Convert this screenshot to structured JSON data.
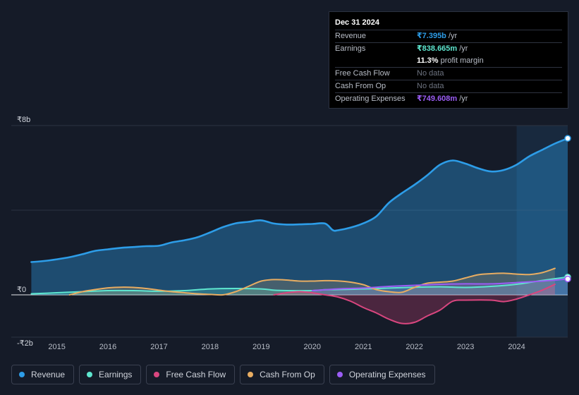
{
  "tooltip": {
    "date": "Dec 31 2024",
    "rows": [
      {
        "label": "Revenue",
        "value": "₹7.395b",
        "unit": "/yr",
        "color": "#2d9de8"
      },
      {
        "label": "Earnings",
        "value": "₹838.665m",
        "unit": "/yr",
        "color": "#5ee6cf"
      },
      {
        "label": "",
        "value": "11.3%",
        "unit": "profit margin",
        "color": "#ffffff"
      },
      {
        "label": "Free Cash Flow",
        "value": "No data",
        "unit": "",
        "color": "#6d7380"
      },
      {
        "label": "Cash From Op",
        "value": "No data",
        "unit": "",
        "color": "#6d7380"
      },
      {
        "label": "Operating Expenses",
        "value": "₹749.608m",
        "unit": "/yr",
        "color": "#9b5df5"
      }
    ]
  },
  "legend": [
    {
      "label": "Revenue",
      "color": "#2d9de8"
    },
    {
      "label": "Earnings",
      "color": "#5ee6cf"
    },
    {
      "label": "Free Cash Flow",
      "color": "#d9467f"
    },
    {
      "label": "Cash From Op",
      "color": "#e8ad62"
    },
    {
      "label": "Operating Expenses",
      "color": "#9b5df5"
    }
  ],
  "chart_data": {
    "type": "line",
    "title": "",
    "currency": "₹",
    "y_tick_labels": [
      "₹8b",
      "₹0",
      "-₹2b"
    ],
    "y_ticks": [
      8,
      0,
      -2
    ],
    "ylim": [
      -2,
      8
    ],
    "xlim": [
      2014.55,
      2025.0
    ],
    "x_tick_labels": [
      "2015",
      "2016",
      "2017",
      "2018",
      "2019",
      "2020",
      "2021",
      "2022",
      "2023",
      "2024"
    ],
    "x_ticks": [
      2015,
      2016,
      2017,
      2018,
      2019,
      2020,
      2021,
      2022,
      2023,
      2024
    ],
    "highlight_start": 2024.0,
    "series": [
      {
        "name": "Revenue",
        "color": "#2d9de8",
        "fill": true,
        "points": [
          [
            2014.5,
            1.55
          ],
          [
            2014.75,
            1.6
          ],
          [
            2015.0,
            1.68
          ],
          [
            2015.25,
            1.78
          ],
          [
            2015.5,
            1.92
          ],
          [
            2015.75,
            2.08
          ],
          [
            2016.0,
            2.15
          ],
          [
            2016.25,
            2.22
          ],
          [
            2016.5,
            2.26
          ],
          [
            2016.75,
            2.3
          ],
          [
            2017.0,
            2.32
          ],
          [
            2017.25,
            2.48
          ],
          [
            2017.5,
            2.58
          ],
          [
            2017.75,
            2.72
          ],
          [
            2018.0,
            2.95
          ],
          [
            2018.25,
            3.2
          ],
          [
            2018.5,
            3.38
          ],
          [
            2018.75,
            3.45
          ],
          [
            2019.0,
            3.52
          ],
          [
            2019.25,
            3.37
          ],
          [
            2019.5,
            3.32
          ],
          [
            2019.75,
            3.33
          ],
          [
            2020.0,
            3.35
          ],
          [
            2020.25,
            3.37
          ],
          [
            2020.4,
            3.06
          ],
          [
            2020.5,
            3.05
          ],
          [
            2020.75,
            3.18
          ],
          [
            2021.0,
            3.38
          ],
          [
            2021.25,
            3.7
          ],
          [
            2021.5,
            4.35
          ],
          [
            2021.75,
            4.8
          ],
          [
            2022.0,
            5.2
          ],
          [
            2022.25,
            5.65
          ],
          [
            2022.5,
            6.15
          ],
          [
            2022.75,
            6.35
          ],
          [
            2023.0,
            6.2
          ],
          [
            2023.25,
            5.98
          ],
          [
            2023.5,
            5.83
          ],
          [
            2023.75,
            5.9
          ],
          [
            2024.0,
            6.15
          ],
          [
            2024.25,
            6.55
          ],
          [
            2024.5,
            6.85
          ],
          [
            2024.75,
            7.15
          ],
          [
            2025.0,
            7.395
          ]
        ]
      },
      {
        "name": "Earnings",
        "color": "#5ee6cf",
        "fill": true,
        "points": [
          [
            2014.5,
            0.05
          ],
          [
            2015.0,
            0.1
          ],
          [
            2015.5,
            0.15
          ],
          [
            2016.0,
            0.2
          ],
          [
            2016.5,
            0.2
          ],
          [
            2017.0,
            0.17
          ],
          [
            2017.5,
            0.2
          ],
          [
            2018.0,
            0.28
          ],
          [
            2018.5,
            0.3
          ],
          [
            2019.0,
            0.28
          ],
          [
            2019.25,
            0.22
          ],
          [
            2019.5,
            0.2
          ],
          [
            2020.0,
            0.2
          ],
          [
            2020.25,
            0.24
          ],
          [
            2020.5,
            0.25
          ],
          [
            2021.0,
            0.28
          ],
          [
            2021.5,
            0.32
          ],
          [
            2022.0,
            0.36
          ],
          [
            2022.5,
            0.38
          ],
          [
            2023.0,
            0.35
          ],
          [
            2023.5,
            0.4
          ],
          [
            2024.0,
            0.5
          ],
          [
            2024.5,
            0.68
          ],
          [
            2025.0,
            0.838665
          ]
        ]
      },
      {
        "name": "Free Cash Flow",
        "color": "#d9467f",
        "fill": true,
        "points": [
          [
            2019.25,
            0.0
          ],
          [
            2019.5,
            0.1
          ],
          [
            2019.75,
            0.15
          ],
          [
            2020.0,
            0.1
          ],
          [
            2020.25,
            0.0
          ],
          [
            2020.5,
            -0.1
          ],
          [
            2020.75,
            -0.3
          ],
          [
            2021.0,
            -0.6
          ],
          [
            2021.25,
            -0.85
          ],
          [
            2021.5,
            -1.15
          ],
          [
            2021.75,
            -1.35
          ],
          [
            2022.0,
            -1.3
          ],
          [
            2022.25,
            -1.0
          ],
          [
            2022.5,
            -0.72
          ],
          [
            2022.75,
            -0.3
          ],
          [
            2023.0,
            -0.25
          ],
          [
            2023.5,
            -0.25
          ],
          [
            2023.75,
            -0.32
          ],
          [
            2024.0,
            -0.2
          ],
          [
            2024.25,
            0.0
          ],
          [
            2024.5,
            0.22
          ],
          [
            2024.75,
            0.5
          ]
        ]
      },
      {
        "name": "Cash From Op",
        "color": "#e8ad62",
        "fill": true,
        "points": [
          [
            2015.25,
            0.0
          ],
          [
            2015.5,
            0.15
          ],
          [
            2015.75,
            0.25
          ],
          [
            2016.0,
            0.33
          ],
          [
            2016.25,
            0.36
          ],
          [
            2016.5,
            0.35
          ],
          [
            2016.75,
            0.3
          ],
          [
            2017.0,
            0.22
          ],
          [
            2017.25,
            0.15
          ],
          [
            2017.5,
            0.1
          ],
          [
            2017.75,
            0.05
          ],
          [
            2018.0,
            0.02
          ],
          [
            2018.25,
            0.0
          ],
          [
            2018.5,
            0.15
          ],
          [
            2018.75,
            0.4
          ],
          [
            2019.0,
            0.65
          ],
          [
            2019.25,
            0.72
          ],
          [
            2019.5,
            0.7
          ],
          [
            2019.75,
            0.65
          ],
          [
            2020.0,
            0.65
          ],
          [
            2020.25,
            0.67
          ],
          [
            2020.5,
            0.66
          ],
          [
            2020.75,
            0.6
          ],
          [
            2021.0,
            0.48
          ],
          [
            2021.25,
            0.25
          ],
          [
            2021.5,
            0.15
          ],
          [
            2021.75,
            0.12
          ],
          [
            2022.0,
            0.35
          ],
          [
            2022.25,
            0.55
          ],
          [
            2022.5,
            0.6
          ],
          [
            2022.75,
            0.65
          ],
          [
            2023.0,
            0.8
          ],
          [
            2023.25,
            0.95
          ],
          [
            2023.5,
            1.0
          ],
          [
            2023.75,
            1.02
          ],
          [
            2024.0,
            0.98
          ],
          [
            2024.25,
            0.96
          ],
          [
            2024.5,
            1.05
          ],
          [
            2024.75,
            1.25
          ]
        ]
      },
      {
        "name": "Operating Expenses",
        "color": "#9b5df5",
        "fill": true,
        "points": [
          [
            2020.0,
            0.2
          ],
          [
            2020.5,
            0.28
          ],
          [
            2021.0,
            0.32
          ],
          [
            2021.5,
            0.4
          ],
          [
            2022.0,
            0.45
          ],
          [
            2022.5,
            0.5
          ],
          [
            2023.0,
            0.52
          ],
          [
            2023.5,
            0.52
          ],
          [
            2024.0,
            0.58
          ],
          [
            2024.5,
            0.65
          ],
          [
            2025.0,
            0.749608
          ]
        ]
      }
    ]
  }
}
